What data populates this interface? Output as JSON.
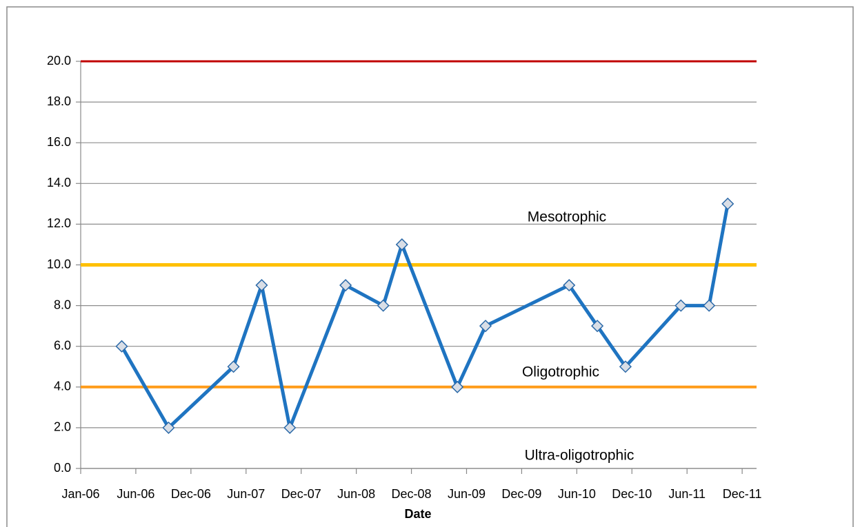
{
  "chart_data": {
    "type": "line",
    "x_label": "Date",
    "x": [
      "2006-05",
      "2006-10",
      "2007-05",
      "2007-08",
      "2007-11",
      "2008-05",
      "2008-09",
      "2008-11",
      "2009-05",
      "2009-08",
      "2010-05",
      "2010-08",
      "2010-11",
      "2011-05",
      "2011-08",
      "2011-10"
    ],
    "series": [
      {
        "color": "#1f74c1",
        "values": [
          6,
          2,
          5,
          9,
          2,
          9,
          8,
          11,
          4,
          7,
          9,
          7,
          5,
          8,
          8,
          13
        ]
      }
    ],
    "thresholds": [
      {
        "value": 20,
        "color": "#c00000"
      },
      {
        "value": 10,
        "color": "#ffc000"
      },
      {
        "value": 4,
        "color": "#ff9c1a"
      }
    ],
    "annotations": [
      "Mesotrophic",
      "Oligotrophic",
      "Ultra-oligotrophic"
    ],
    "xlim": [
      "2006-01-01",
      "2012-01-17"
    ],
    "xticks": [
      {
        "value": "2006-01-01",
        "label": "Jan-06"
      },
      {
        "value": "2006-06-30",
        "label": "Jun-06"
      },
      {
        "value": "2006-12-27",
        "label": "Dec-06"
      },
      {
        "value": "2007-06-25",
        "label": "Jun-07"
      },
      {
        "value": "2007-12-22",
        "label": "Dec-07"
      },
      {
        "value": "2008-06-19",
        "label": "Jun-08"
      },
      {
        "value": "2008-12-16",
        "label": "Dec-08"
      },
      {
        "value": "2009-06-14",
        "label": "Jun-09"
      },
      {
        "value": "2009-12-11",
        "label": "Dec-09"
      },
      {
        "value": "2010-06-09",
        "label": "Jun-10"
      },
      {
        "value": "2010-12-06",
        "label": "Dec-10"
      },
      {
        "value": "2011-06-04",
        "label": "Jun-11"
      },
      {
        "value": "2011-12-01",
        "label": "Dec-11"
      }
    ],
    "ylim": [
      0,
      20
    ],
    "yticks": [
      {
        "value": 0,
        "label": "0.0"
      },
      {
        "value": 2,
        "label": "2.0"
      },
      {
        "value": 4,
        "label": "4.0"
      },
      {
        "value": 6,
        "label": "6.0"
      },
      {
        "value": 8,
        "label": "8.0"
      },
      {
        "value": 10,
        "label": "10.0"
      },
      {
        "value": 12,
        "label": "12.0"
      },
      {
        "value": 14,
        "label": "14.0"
      },
      {
        "value": 16,
        "label": "16.0"
      },
      {
        "value": 18,
        "label": "18.0"
      },
      {
        "value": 20,
        "label": "20.0"
      }
    ],
    "grid": true
  }
}
